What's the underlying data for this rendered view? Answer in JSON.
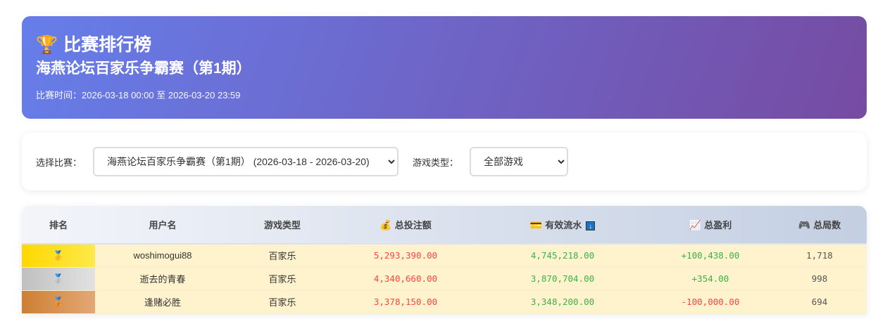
{
  "header": {
    "icon": "trophy-icon",
    "title": "比赛排行榜",
    "subtitle": "海燕论坛百家乐争霸赛（第1期）",
    "time": "比赛时间：2026-03-18 00:00 至 2026-03-20 23:59"
  },
  "filters": {
    "contest_label": "选择比赛：",
    "contest_value": "海燕论坛百家乐争霸赛（第1期） (2026-03-18 - 2026-03-20)",
    "game_label": "游戏类型：",
    "game_value": "全部游戏"
  },
  "table": {
    "columns": [
      {
        "label": "排名"
      },
      {
        "label": "用户名"
      },
      {
        "label": "游戏类型"
      },
      {
        "label": "总投注额",
        "icon": "money-bag-icon"
      },
      {
        "label": "有效流水",
        "icon": "credit-card-icon",
        "sort": "↓"
      },
      {
        "label": "总盈利",
        "icon": "chart-icon"
      },
      {
        "label": "总局数",
        "icon": "gamepad-icon"
      }
    ],
    "rows": [
      {
        "rank": "🥇",
        "user": "woshimogui88",
        "game": "百家乐",
        "bet": "5,293,390.00",
        "flow": "4,745,218.00",
        "profit": "+100,438.00",
        "rounds": "1,718"
      },
      {
        "rank": "🥈",
        "user": "逝去的青春",
        "game": "百家乐",
        "bet": "4,340,660.00",
        "flow": "3,870,704.00",
        "profit": "+354.00",
        "rounds": "998"
      },
      {
        "rank": "🥉",
        "user": "逢赌必胜",
        "game": "百家乐",
        "bet": "3,378,150.00",
        "flow": "3,348,200.00",
        "profit": "-100,000.00",
        "rounds": "694"
      }
    ]
  },
  "colors": {
    "gold": "#ffd700",
    "silver": "#c0c0c0",
    "bronze": "#cd7f32",
    "positive": "#3cb04c",
    "negative": "#ff4444"
  }
}
